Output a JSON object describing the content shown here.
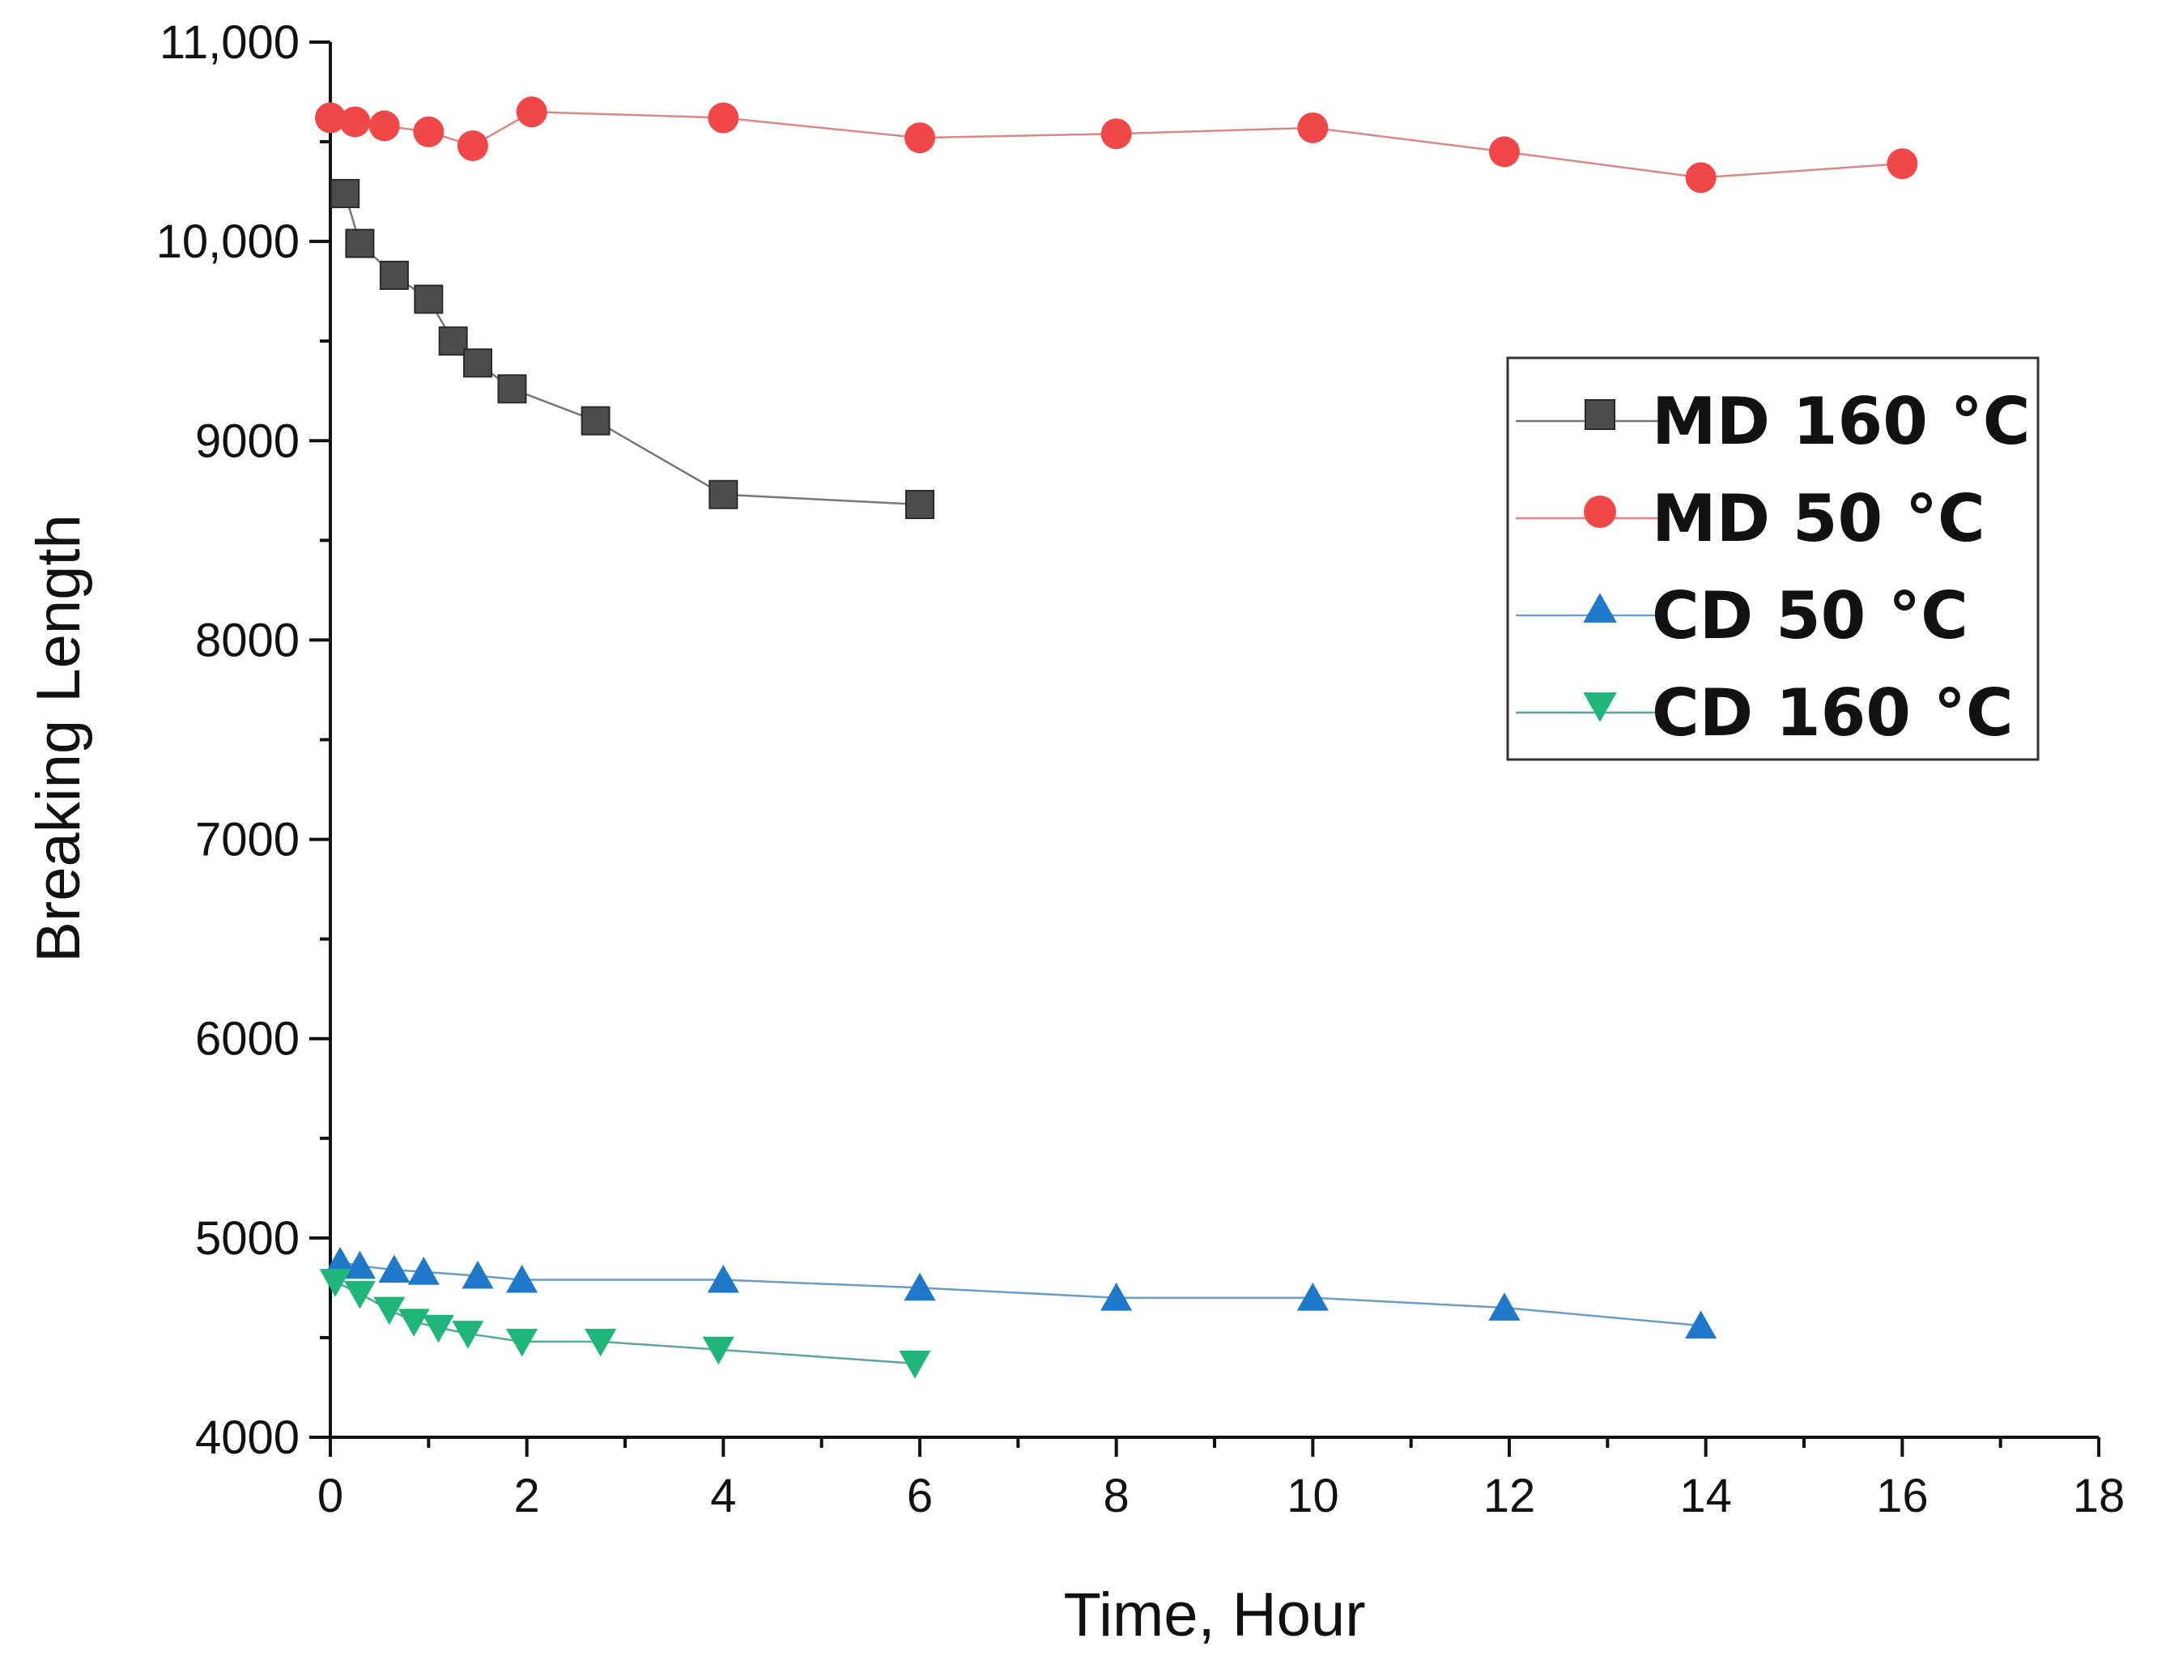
{
  "chart_data": {
    "type": "line",
    "title": "",
    "xlabel": "Time, Hour",
    "ylabel": "Breaking Length",
    "xlim": [
      0,
      18
    ],
    "ylim": [
      4000,
      11000
    ],
    "x_ticks": [
      0,
      2,
      4,
      6,
      8,
      10,
      12,
      14,
      16,
      18
    ],
    "y_ticks": [
      4000,
      5000,
      6000,
      7000,
      8000,
      9000,
      10000,
      11000
    ],
    "y_tick_labels": [
      "4000",
      "5000",
      "6000",
      "7000",
      "8000",
      "9000",
      "10,000",
      "11,000"
    ],
    "grid": false,
    "legend_position": "upper-right",
    "series": [
      {
        "name": "MD 160 °C",
        "marker": "square",
        "color": "#4d4d4d",
        "line_color": "#777777",
        "x": [
          0.15,
          0.3,
          0.65,
          1.0,
          1.25,
          1.5,
          1.85,
          2.7,
          4.0,
          6.0
        ],
        "y": [
          10240,
          9990,
          9830,
          9710,
          9500,
          9390,
          9260,
          9100,
          8730,
          8680
        ]
      },
      {
        "name": "MD 50 °C",
        "marker": "circle",
        "color": "#f04848",
        "line_color": "#d88888",
        "x": [
          0.0,
          0.25,
          0.55,
          1.0,
          1.45,
          2.05,
          4.0,
          6.0,
          8.0,
          10.0,
          11.95,
          13.95,
          16.0
        ],
        "y": [
          10620,
          10600,
          10580,
          10550,
          10480,
          10650,
          10620,
          10520,
          10540,
          10570,
          10450,
          10320,
          10390
        ]
      },
      {
        "name": "CD 50 °C",
        "marker": "triangle-up",
        "color": "#1f78c8",
        "line_color": "#6a9cc4",
        "x": [
          0.1,
          0.3,
          0.65,
          0.95,
          1.5,
          1.95,
          4.0,
          6.0,
          8.0,
          10.0,
          11.95,
          13.95
        ],
        "y": [
          4880,
          4860,
          4840,
          4830,
          4810,
          4790,
          4790,
          4750,
          4700,
          4700,
          4650,
          4560
        ]
      },
      {
        "name": "CD 160 °C",
        "marker": "triangle-down",
        "color": "#20b57a",
        "line_color": "#5fa69a",
        "x": [
          0.05,
          0.3,
          0.6,
          0.85,
          1.1,
          1.4,
          1.95,
          2.75,
          3.95,
          5.95
        ],
        "y": [
          4780,
          4720,
          4640,
          4580,
          4550,
          4520,
          4480,
          4480,
          4440,
          4370
        ]
      }
    ]
  }
}
